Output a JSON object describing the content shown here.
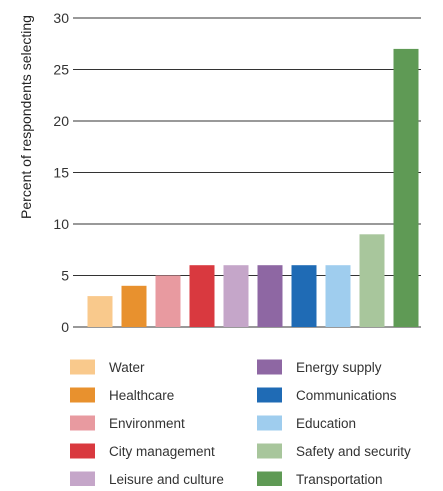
{
  "chart_data": {
    "type": "bar",
    "title": "",
    "xlabel": "",
    "ylabel": "Percent of respondents selecting",
    "ylim": [
      0,
      30
    ],
    "yticks": [
      0,
      5,
      10,
      15,
      20,
      25,
      30
    ],
    "grid": true,
    "legend_position": "bottom",
    "categories": [
      "Water",
      "Healthcare",
      "Environment",
      "City management",
      "Leisure and culture",
      "Energy supply",
      "Communications",
      "Education",
      "Safety and security",
      "Transportation"
    ],
    "values": [
      3,
      4,
      5,
      6,
      6,
      6,
      6,
      6,
      9,
      27
    ],
    "colors": [
      "#f9c98c",
      "#e8912e",
      "#e89aa0",
      "#d9393f",
      "#c5a6c9",
      "#8e67a3",
      "#1f6bb5",
      "#9fcdee",
      "#a8c69c",
      "#5f9a55"
    ]
  }
}
